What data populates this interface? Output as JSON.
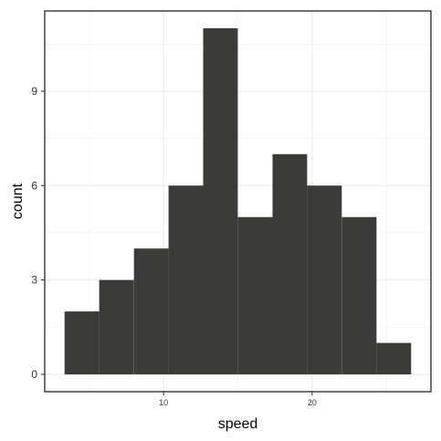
{
  "chart_data": {
    "type": "bar",
    "title": "",
    "xlabel": "speed",
    "ylabel": "count",
    "bin_width": 2.33,
    "x": [
      4.5,
      6.83,
      9.17,
      11.5,
      13.83,
      16.17,
      18.5,
      20.83,
      23.17,
      25.5
    ],
    "values": [
      2,
      3,
      4,
      6,
      11,
      5,
      7,
      6,
      5,
      1
    ],
    "xlim": [
      2,
      28
    ],
    "ylim": [
      -0.55,
      11.55
    ],
    "xticks": [
      10,
      20
    ],
    "yticks": [
      0,
      3,
      6,
      9
    ],
    "bar_color": "#3b3b39",
    "grid": true,
    "theme": "bw"
  }
}
